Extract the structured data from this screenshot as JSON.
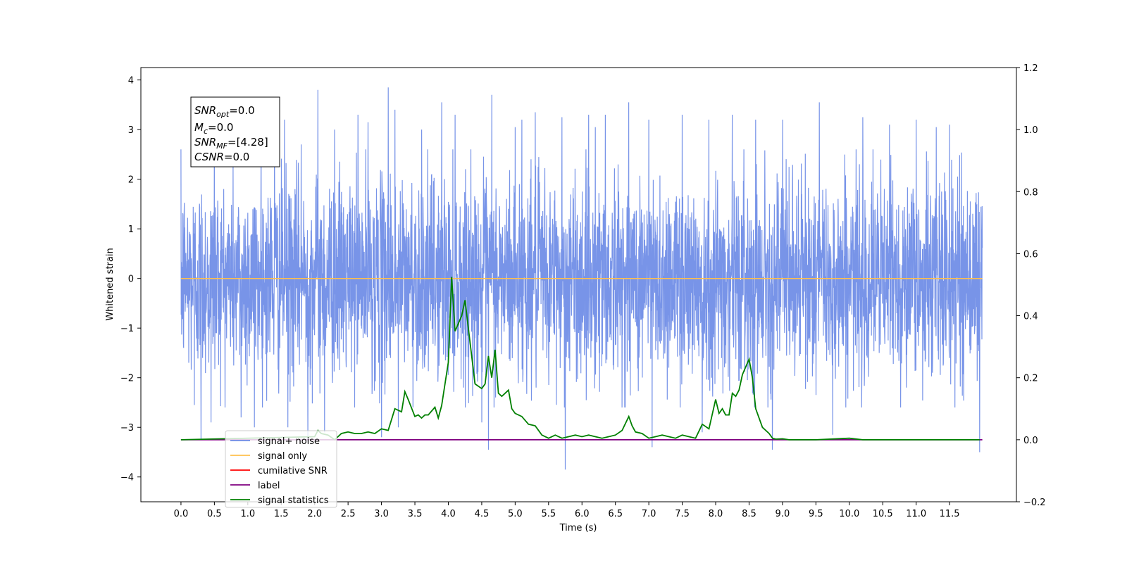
{
  "chart_data": {
    "type": "line",
    "xlabel": "Time (s)",
    "ylabel": "Whitened strain",
    "xlim": [
      -0.6,
      12.5
    ],
    "ylim": [
      -4.5,
      4.25
    ],
    "y2lim": [
      -0.2,
      1.2
    ],
    "x_ticks": [
      "0.0",
      "0.5",
      "1.0",
      "1.5",
      "2.0",
      "2.5",
      "3.0",
      "3.5",
      "4.0",
      "4.5",
      "5.0",
      "5.5",
      "6.0",
      "6.5",
      "7.0",
      "7.5",
      "8.0",
      "8.5",
      "9.0",
      "9.5",
      "10.0",
      "10.5",
      "11.0",
      "11.5"
    ],
    "y_ticks": [
      "4",
      "3",
      "2",
      "1",
      "0",
      "−1",
      "−2",
      "−3",
      "−4"
    ],
    "y2_ticks": [
      "1.2",
      "1.0",
      "0.8",
      "0.6",
      "0.4",
      "0.2",
      "0.0",
      "−0.2"
    ],
    "annotation": {
      "lines": [
        {
          "main": "SNR",
          "sub": "opt",
          "rest": "=0.0"
        },
        {
          "main": "M",
          "sub": "c",
          "rest": "=0.0"
        },
        {
          "main": "SNR",
          "sub": "MF",
          "rest": "=[4.28]"
        },
        {
          "main": "CSNR",
          "sub": "",
          "rest": "=0.0"
        }
      ]
    },
    "legend": {
      "placement": "lower-left",
      "entries": [
        {
          "label": "signal+ noise",
          "color": "#6c8be6"
        },
        {
          "label": "signal only",
          "color": "#ffc04d"
        },
        {
          "label": "cumilative SNR",
          "color": "#ff0000"
        },
        {
          "label": "label",
          "color": "#800080"
        },
        {
          "label": "signal statistics",
          "color": "#008000"
        }
      ]
    },
    "series": [
      {
        "name": "signal+ noise",
        "axis": "left",
        "color": "#6c8be6",
        "style": "noise",
        "x_range": [
          0.0,
          11.99
        ],
        "envelope_typical": [
          -2.3,
          2.3
        ],
        "extreme_peaks": [
          {
            "x": 0.2,
            "y": 2.55
          },
          {
            "x": 0.2,
            "y": -2.55
          },
          {
            "x": 0.3,
            "y": -3.25
          },
          {
            "x": 0.45,
            "y": 3.1
          },
          {
            "x": 0.45,
            "y": -2.9
          },
          {
            "x": 0.5,
            "y": 2.8
          },
          {
            "x": 0.9,
            "y": -2.8
          },
          {
            "x": 1.1,
            "y": -3.0
          },
          {
            "x": 1.2,
            "y": 2.9
          },
          {
            "x": 1.4,
            "y": 3.0
          },
          {
            "x": 1.55,
            "y": 3.2
          },
          {
            "x": 1.6,
            "y": -3.0
          },
          {
            "x": 1.8,
            "y": 2.7
          },
          {
            "x": 1.9,
            "y": -3.3
          },
          {
            "x": 2.05,
            "y": 3.8
          },
          {
            "x": 2.15,
            "y": -3.1
          },
          {
            "x": 2.3,
            "y": 3.0
          },
          {
            "x": 2.65,
            "y": 3.3
          },
          {
            "x": 2.8,
            "y": 3.15
          },
          {
            "x": 3.0,
            "y": -3.2
          },
          {
            "x": 3.1,
            "y": 3.85
          },
          {
            "x": 3.2,
            "y": 3.4
          },
          {
            "x": 3.25,
            "y": -3.0
          },
          {
            "x": 3.6,
            "y": 3.0
          },
          {
            "x": 3.9,
            "y": 3.55
          },
          {
            "x": 4.1,
            "y": 3.3
          },
          {
            "x": 4.5,
            "y": -2.9
          },
          {
            "x": 4.6,
            "y": -3.45
          },
          {
            "x": 4.65,
            "y": 3.7
          },
          {
            "x": 5.0,
            "y": 3.05
          },
          {
            "x": 5.1,
            "y": 3.2
          },
          {
            "x": 5.3,
            "y": 3.35
          },
          {
            "x": 5.7,
            "y": 3.25
          },
          {
            "x": 5.75,
            "y": -3.85
          },
          {
            "x": 6.1,
            "y": 3.3
          },
          {
            "x": 6.2,
            "y": 3.05
          },
          {
            "x": 6.35,
            "y": 3.3
          },
          {
            "x": 6.7,
            "y": 3.55
          },
          {
            "x": 7.0,
            "y": 3.2
          },
          {
            "x": 7.05,
            "y": -3.4
          },
          {
            "x": 7.5,
            "y": 3.3
          },
          {
            "x": 7.8,
            "y": -3.1
          },
          {
            "x": 7.9,
            "y": 3.2
          },
          {
            "x": 8.25,
            "y": 3.3
          },
          {
            "x": 8.6,
            "y": 3.2
          },
          {
            "x": 8.85,
            "y": -3.45
          },
          {
            "x": 9.0,
            "y": 3.2
          },
          {
            "x": 9.55,
            "y": 3.55
          },
          {
            "x": 9.75,
            "y": -3.15
          },
          {
            "x": 10.2,
            "y": 3.25
          },
          {
            "x": 10.6,
            "y": 3.1
          },
          {
            "x": 11.0,
            "y": 3.2
          },
          {
            "x": 11.3,
            "y": 3.05
          },
          {
            "x": 11.5,
            "y": 3.1
          },
          {
            "x": 11.95,
            "y": -3.5
          }
        ]
      },
      {
        "name": "signal only",
        "axis": "left",
        "color": "#ffc04d",
        "x": [
          0.0,
          11.99
        ],
        "y": [
          0.0,
          0.0
        ]
      },
      {
        "name": "label",
        "axis": "right",
        "color": "#800080",
        "x": [
          0.0,
          11.99
        ],
        "y": [
          0.0,
          0.0
        ]
      },
      {
        "name": "signal statistics",
        "axis": "right",
        "color": "#008000",
        "x": [
          0.0,
          2.0,
          2.05,
          2.1,
          2.2,
          2.3,
          2.4,
          2.5,
          2.6,
          2.7,
          2.8,
          2.9,
          3.0,
          3.1,
          3.2,
          3.3,
          3.35,
          3.4,
          3.5,
          3.55,
          3.6,
          3.65,
          3.7,
          3.8,
          3.85,
          3.9,
          4.0,
          4.05,
          4.1,
          4.2,
          4.25,
          4.3,
          4.4,
          4.5,
          4.55,
          4.6,
          4.65,
          4.7,
          4.75,
          4.8,
          4.9,
          4.95,
          5.0,
          5.1,
          5.2,
          5.3,
          5.4,
          5.5,
          5.6,
          5.7,
          5.8,
          5.9,
          6.0,
          6.1,
          6.2,
          6.3,
          6.4,
          6.5,
          6.6,
          6.7,
          6.75,
          6.8,
          6.9,
          7.0,
          7.1,
          7.2,
          7.3,
          7.4,
          7.5,
          7.6,
          7.7,
          7.8,
          7.9,
          8.0,
          8.05,
          8.1,
          8.15,
          8.2,
          8.25,
          8.3,
          8.35,
          8.4,
          8.5,
          8.55,
          8.6,
          8.7,
          8.8,
          8.85,
          8.9,
          9.0,
          9.1,
          9.5,
          10.0,
          10.2,
          11.0,
          11.95
        ],
        "y": [
          0.0,
          0.01,
          0.03,
          0.02,
          0.015,
          0.0,
          0.02,
          0.025,
          0.02,
          0.02,
          0.025,
          0.02,
          0.035,
          0.03,
          0.1,
          0.09,
          0.155,
          0.13,
          0.075,
          0.08,
          0.07,
          0.08,
          0.08,
          0.105,
          0.07,
          0.11,
          0.25,
          0.525,
          0.35,
          0.4,
          0.45,
          0.36,
          0.18,
          0.165,
          0.18,
          0.27,
          0.2,
          0.29,
          0.15,
          0.14,
          0.16,
          0.1,
          0.085,
          0.075,
          0.05,
          0.045,
          0.015,
          0.005,
          0.015,
          0.005,
          0.01,
          0.015,
          0.01,
          0.015,
          0.01,
          0.005,
          0.01,
          0.015,
          0.03,
          0.075,
          0.045,
          0.025,
          0.02,
          0.005,
          0.01,
          0.015,
          0.01,
          0.005,
          0.015,
          0.01,
          0.005,
          0.05,
          0.035,
          0.13,
          0.085,
          0.1,
          0.08,
          0.08,
          0.15,
          0.14,
          0.16,
          0.21,
          0.26,
          0.2,
          0.1,
          0.04,
          0.02,
          0.005,
          0.002,
          0.003,
          0.0,
          0.0,
          0.005,
          0.0,
          0.0,
          0.0
        ]
      }
    ]
  }
}
